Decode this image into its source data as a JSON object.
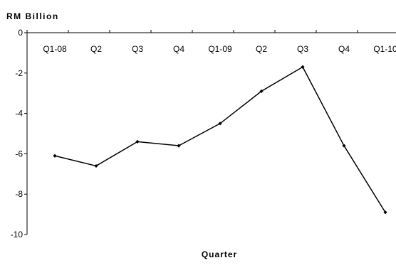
{
  "chart_data": {
    "type": "line",
    "ylabel": "RM Billion",
    "xlabel": "Quarter",
    "categories": [
      "Q1-08",
      "Q2",
      "Q3",
      "Q4",
      "Q1-09",
      "Q2",
      "Q3",
      "Q4",
      "Q1-10"
    ],
    "series": [
      {
        "values": [
          -6.1,
          -6.6,
          -5.4,
          -5.6,
          -4.5,
          -2.9,
          -1.7,
          -5.6,
          -8.9
        ]
      }
    ],
    "yticks": [
      0,
      -2,
      -4,
      -6,
      -8,
      -10
    ],
    "ylim": [
      -10,
      0
    ],
    "grid": false,
    "line_color": "#000000",
    "marker": "diamond"
  }
}
